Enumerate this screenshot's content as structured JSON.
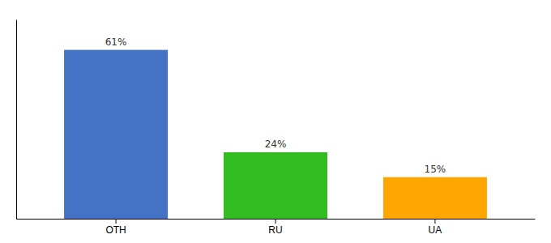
{
  "chart_data": {
    "type": "bar",
    "categories": [
      "OTH",
      "RU",
      "UA"
    ],
    "values": [
      61,
      24,
      15
    ],
    "value_labels": [
      "61%",
      "24%",
      "15%"
    ],
    "colors": [
      "#4472C4",
      "#33BB22",
      "#FFA500"
    ],
    "ylim": [
      0,
      72
    ],
    "data_labels": true,
    "tick_labels": "x"
  }
}
